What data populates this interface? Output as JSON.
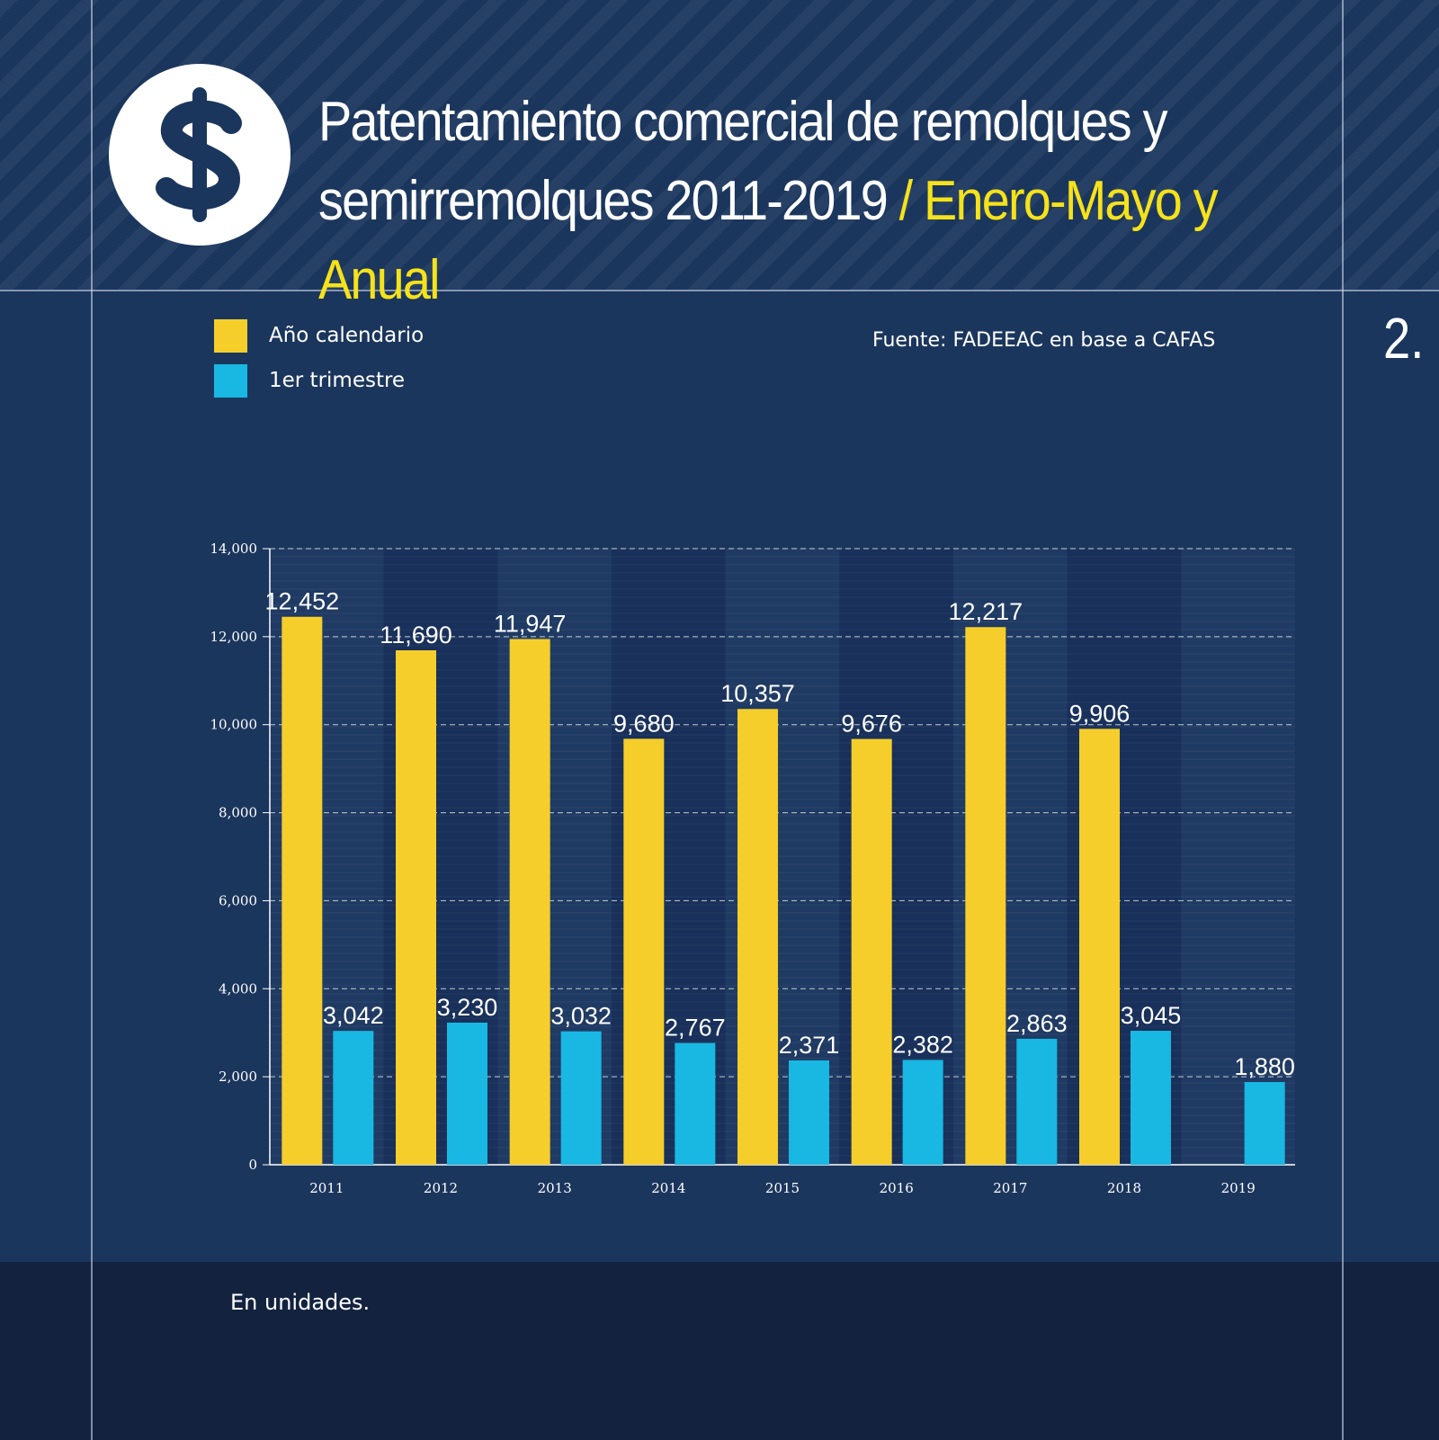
{
  "header": {
    "title_main": "Patentamiento comercial de remolques y semirremolques 2011-2019",
    "title_accent": "/ Enero-Mayo y Anual",
    "icon": "dollar-icon",
    "badge": "2."
  },
  "legend": [
    {
      "label": "Año calendario",
      "color": "#f5ce2b"
    },
    {
      "label": "1er trimestre",
      "color": "#19b8e2"
    }
  ],
  "source": "Fuente: FADEEAC en base a CAFAS",
  "footer": {
    "note": "En unidades."
  },
  "colors": {
    "background": "#1b365d",
    "footer": "#13233f",
    "annual": "#f5ce2b",
    "quarter": "#19b8e2",
    "accent_text": "#f5e21a"
  },
  "chart_data": {
    "type": "bar",
    "title": "Patentamiento comercial de remolques y semirremolques 2011-2019 / Enero-Mayo y Anual",
    "xlabel": "",
    "ylabel": "",
    "ylim": [
      0,
      14000
    ],
    "yticks": [
      "0",
      "2,000",
      "4,000",
      "6,000",
      "8,000",
      "10,000",
      "12,000",
      "14,000"
    ],
    "grid": true,
    "legend_position": "top-left",
    "categories": [
      "2011",
      "2012",
      "2013",
      "2014",
      "2015",
      "2016",
      "2017",
      "2018",
      "2019"
    ],
    "series": [
      {
        "name": "Año calendario",
        "values": [
          12452,
          11690,
          11947,
          9680,
          10357,
          9676,
          12217,
          9906,
          null
        ],
        "labels": [
          "12,452",
          "11,690",
          "11,947",
          "9,680",
          "10,357",
          "9,676",
          "12,217",
          "9,906",
          ""
        ]
      },
      {
        "name": "1er trimestre",
        "values": [
          3042,
          3230,
          3032,
          2767,
          2371,
          2382,
          2863,
          3045,
          1880
        ],
        "labels": [
          "3,042",
          "3,230",
          "3,032",
          "2,767",
          "2,371",
          "2,382",
          "2,863",
          "3,045",
          "1,880"
        ]
      }
    ]
  }
}
